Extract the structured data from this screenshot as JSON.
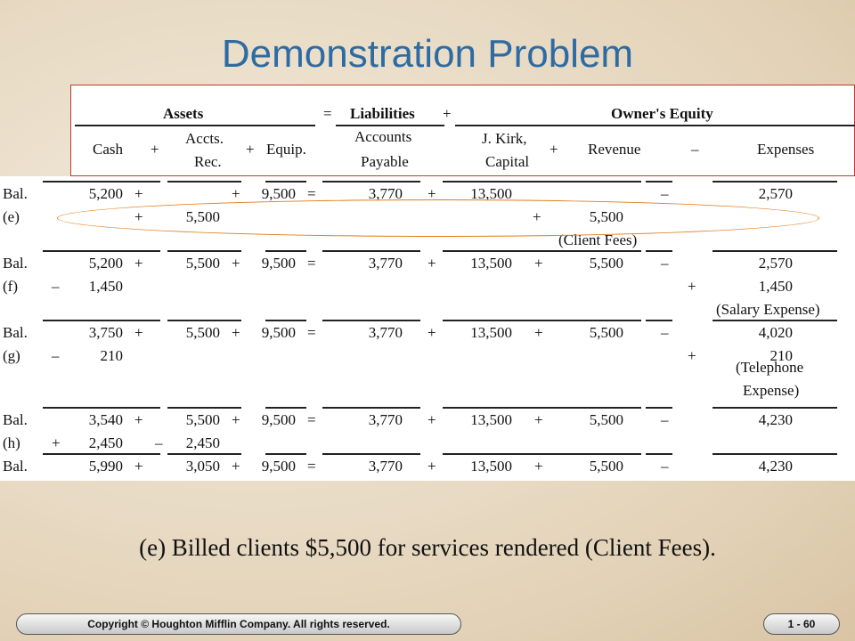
{
  "title": "Demonstration Problem",
  "header": {
    "assets": "Assets",
    "eq": "=",
    "liabilities": "Liabilities",
    "plus": "+",
    "owners_equity": "Owner's Equity",
    "cash": "Cash",
    "accts_rec_1": "Accts.",
    "accts_rec_2": "Rec.",
    "equip": "Equip.",
    "accounts_payable_1": "Accounts",
    "accounts_payable_2": "Payable",
    "capital_1": "J. Kirk,",
    "capital_2": "Capital",
    "revenue": "Revenue",
    "minus": "–",
    "expenses": "Expenses"
  },
  "rows": [
    {
      "label": "Bal.",
      "cash": "5,200",
      "ar": "",
      "equip": "9,500",
      "ap": "3,770",
      "cap": "13,500",
      "rev": "",
      "exp": "2,570",
      "type": "bal",
      "ops": {
        "c_ar": "+",
        "ar_eq": "+",
        "eq": "=",
        "ap_cap": "+",
        "cap_rev": "",
        "rev_exp": "–"
      }
    },
    {
      "label": "(e)",
      "cash_sign": "",
      "cash": "",
      "ar_sign": "+",
      "ar": "5,500",
      "rev_sign": "+",
      "rev": "5,500",
      "note": "(Client Fees)",
      "type": "txn"
    },
    {
      "label": "Bal.",
      "cash": "5,200",
      "ar": "5,500",
      "equip": "9,500",
      "ap": "3,770",
      "cap": "13,500",
      "rev": "5,500",
      "exp": "2,570",
      "type": "bal"
    },
    {
      "label": "(f)",
      "cash_sign": "–",
      "cash": "1,450",
      "exp_sign": "+",
      "exp": "1,450",
      "note": "(Salary Expense)",
      "type": "txn"
    },
    {
      "label": "Bal.",
      "cash": "3,750",
      "ar": "5,500",
      "equip": "9,500",
      "ap": "3,770",
      "cap": "13,500",
      "rev": "5,500",
      "exp": "4,020",
      "type": "bal"
    },
    {
      "label": "(g)",
      "cash_sign": "–",
      "cash": "210",
      "exp_sign": "+",
      "exp": "210",
      "note1": "(Telephone",
      "note2": "Expense)",
      "type": "txn"
    },
    {
      "label": "Bal.",
      "cash": "3,540",
      "ar": "5,500",
      "equip": "9,500",
      "ap": "3,770",
      "cap": "13,500",
      "rev": "5,500",
      "exp": "4,230",
      "type": "bal"
    },
    {
      "label": "(h)",
      "cash_sign": "+",
      "cash": "2,450",
      "ar_sign": "–",
      "ar": "2,450",
      "type": "txn"
    },
    {
      "label": "Bal.",
      "cash": "5,990",
      "ar": "3,050",
      "equip": "9,500",
      "ap": "3,770",
      "cap": "13,500",
      "rev": "5,500",
      "exp": "4,230",
      "type": "bal"
    }
  ],
  "caption": "(e) Billed clients $5,500 for services rendered (Client Fees).",
  "footer": {
    "copyright": "Copyright © Houghton Mifflin Company. All rights reserved.",
    "page": "1 - 60"
  }
}
